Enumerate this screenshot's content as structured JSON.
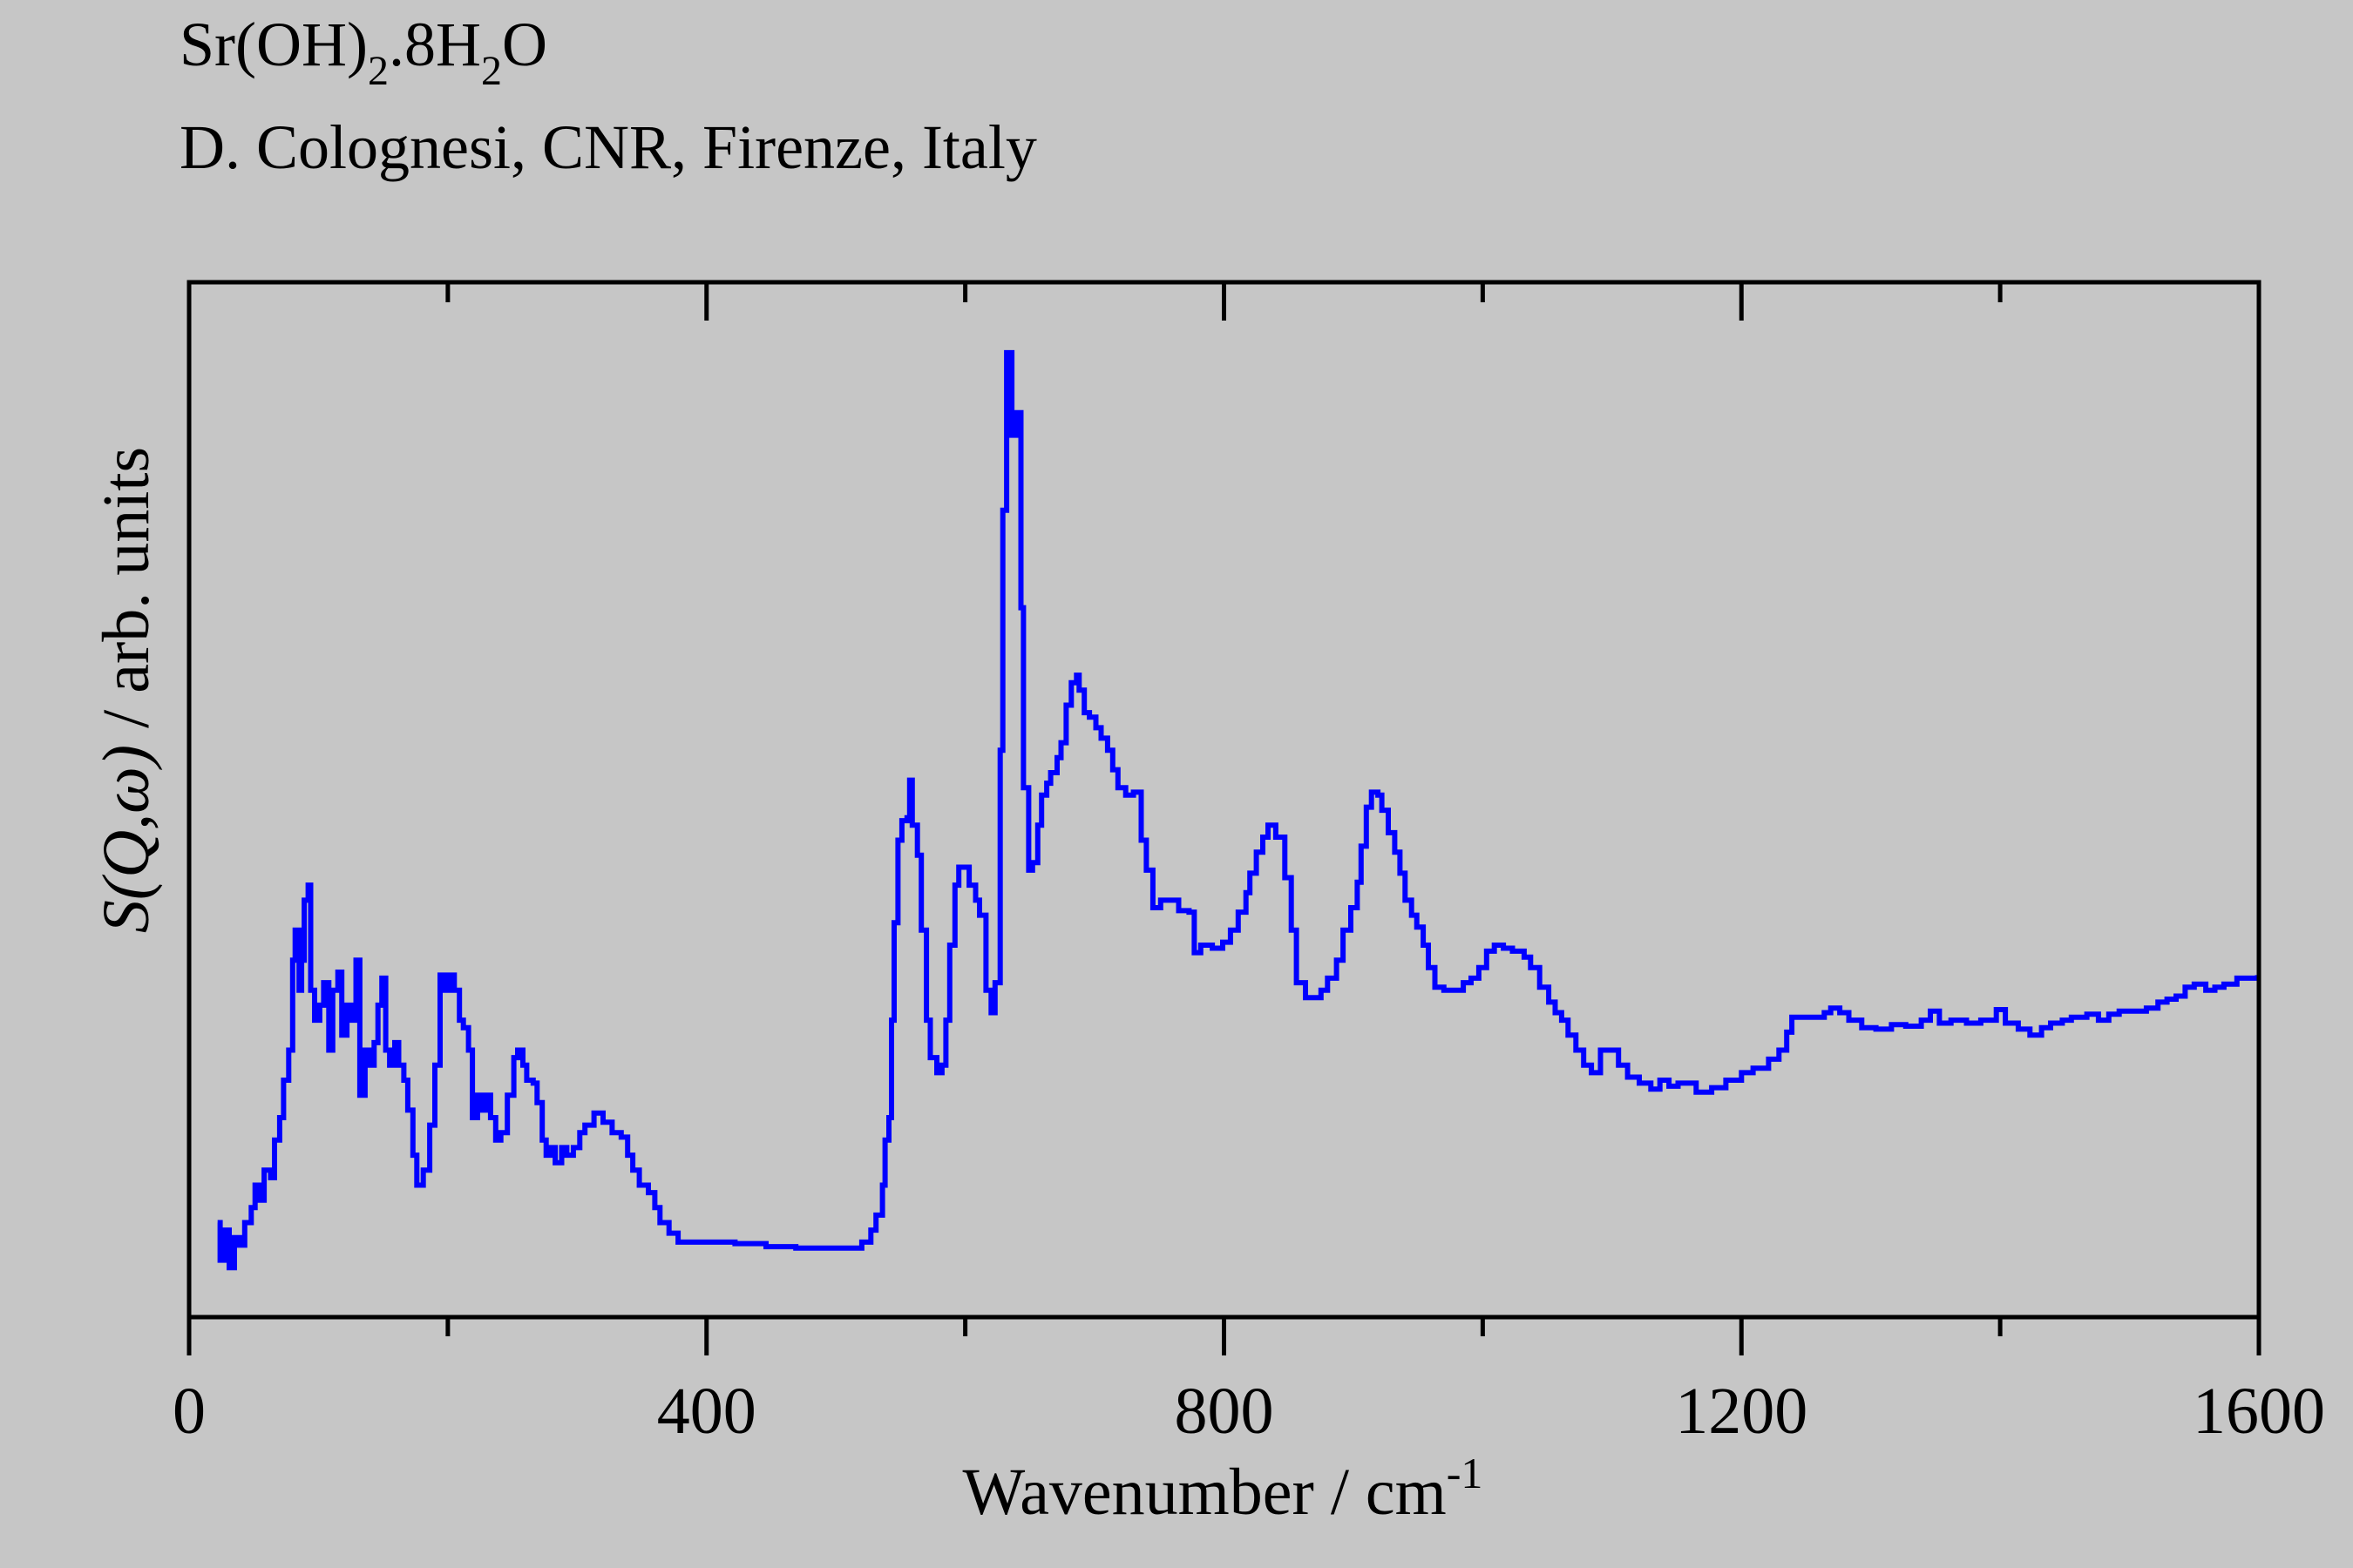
{
  "header": {
    "compound_main": "Sr(OH)",
    "compound_sub1": "2",
    "compound_mid": ".8H",
    "compound_sub2": "2",
    "compound_end": "O",
    "credit": "D. Colognesi, CNR, Firenze, Italy"
  },
  "chart_data": {
    "type": "line",
    "title": "Sr(OH)2.8H2O",
    "subtitle": "D. Colognesi, CNR, Firenze, Italy",
    "xlabel_main": "Wavenumber / cm",
    "xlabel_sup": "-1",
    "ylabel_italic": "S(Q,ω)",
    "ylabel_rest": " / arb. units",
    "xlim": [
      0,
      1600
    ],
    "ylim": [
      0,
      690
    ],
    "grid": false,
    "legend": "none",
    "x_major_ticks": [
      0,
      400,
      800,
      1200,
      1600
    ],
    "x_tick_labels": [
      "0",
      "400",
      "800",
      "1200",
      "1600"
    ],
    "x_minor_ticks": [
      200,
      600,
      1000,
      1400
    ],
    "series": [
      {
        "name": "S(Q,ω)",
        "color": "#0000ff",
        "style": "step",
        "x": [
          22,
          24,
          28,
          31,
          35,
          39,
          43,
          48,
          51,
          55,
          58,
          63,
          66,
          70,
          73,
          77,
          80,
          82,
          85,
          87,
          89,
          92,
          94,
          97,
          101,
          104,
          108,
          111,
          115,
          118,
          122,
          125,
          129,
          132,
          136,
          139,
          143,
          146,
          149,
          152,
          155,
          159,
          162,
          166,
          169,
          173,
          176,
          181,
          186,
          190,
          194,
          198,
          202,
          205,
          209,
          212,
          216,
          219,
          223,
          226,
          230,
          233,
          237,
          241,
          246,
          251,
          254,
          258,
          261,
          266,
          269,
          273,
          276,
          280,
          283,
          288,
          292,
          297,
          302,
          306,
          313,
          320,
          327,
          334,
          339,
          343,
          348,
          355,
          360,
          364,
          371,
          378,
          399,
          422,
          446,
          469,
          492,
          513,
          520,
          527,
          531,
          536,
          538,
          541,
          543,
          545,
          548,
          551,
          555,
          557,
          559,
          563,
          566,
          570,
          573,
          578,
          582,
          585,
          588,
          592,
          595,
          600,
          603,
          608,
          611,
          616,
          620,
          623,
          627,
          629,
          632,
          636,
          639,
          643,
          645,
          649,
          652,
          656,
          659,
          663,
          666,
          671,
          674,
          678,
          682,
          686,
          688,
          692,
          696,
          701,
          705,
          710,
          714,
          718,
          724,
          730,
          736,
          740,
          745,
          751,
          759,
          765,
          773,
          777,
          782,
          791,
          799,
          805,
          811,
          817,
          820,
          825,
          830,
          834,
          840,
          847,
          852,
          856,
          863,
          870,
          875,
          880,
          887,
          892,
          898,
          903,
          906,
          910,
          914,
          919,
          922,
          927,
          932,
          936,
          940,
          945,
          949,
          954,
          958,
          963,
          970,
          979,
          985,
          991,
          997,
          1003,
          1009,
          1016,
          1023,
          1032,
          1037,
          1044,
          1051,
          1056,
          1061,
          1066,
          1072,
          1078,
          1084,
          1091,
          1098,
          1105,
          1112,
          1121,
          1130,
          1137,
          1144,
          1151,
          1158,
          1165,
          1177,
          1188,
          1200,
          1209,
          1221,
          1229,
          1235,
          1239,
          1246,
          1255,
          1264,
          1269,
          1276,
          1283,
          1293,
          1304,
          1316,
          1327,
          1339,
          1346,
          1353,
          1362,
          1374,
          1385,
          1397,
          1404,
          1414,
          1423,
          1432,
          1439,
          1448,
          1455,
          1467,
          1476,
          1484,
          1492,
          1501,
          1513,
          1522,
          1529,
          1536,
          1543,
          1550,
          1559,
          1566,
          1573,
          1583,
          1592,
          1599
        ],
        "y": [
          63,
          38,
          58,
          33,
          53,
          48,
          63,
          73,
          88,
          78,
          98,
          93,
          118,
          133,
          158,
          178,
          238,
          258,
          218,
          238,
          278,
          288,
          218,
          198,
          208,
          223,
          178,
          218,
          230,
          188,
          208,
          198,
          238,
          148,
          178,
          168,
          183,
          208,
          226,
          178,
          168,
          183,
          168,
          158,
          138,
          108,
          88,
          98,
          128,
          168,
          228,
          218,
          228,
          218,
          198,
          193,
          178,
          133,
          148,
          138,
          148,
          133,
          118,
          123,
          148,
          173,
          178,
          168,
          158,
          156,
          143,
          118,
          108,
          113,
          103,
          113,
          108,
          113,
          123,
          128,
          136,
          130,
          123,
          120,
          108,
          98,
          88,
          83,
          73,
          63,
          56,
          50,
          50,
          49,
          47,
          46,
          46,
          46,
          50,
          58,
          68,
          88,
          118,
          133,
          198,
          263,
          318,
          331,
          333,
          358,
          328,
          308,
          258,
          198,
          173,
          163,
          168,
          198,
          248,
          288,
          300,
          300,
          288,
          278,
          268,
          218,
          203,
          223,
          378,
          538,
          643,
          588,
          603,
          473,
          353,
          298,
          303,
          328,
          348,
          356,
          363,
          373,
          383,
          408,
          423,
          428,
          418,
          403,
          400,
          393,
          386,
          378,
          365,
          353,
          348,
          350,
          318,
          298,
          273,
          278,
          278,
          271,
          270,
          243,
          248,
          246,
          250,
          258,
          270,
          283,
          296,
          310,
          320,
          328,
          320,
          293,
          258,
          223,
          213,
          213,
          218,
          226,
          238,
          258,
          273,
          290,
          314,
          340,
          350,
          348,
          338,
          323,
          310,
          296,
          278,
          268,
          260,
          248,
          233,
          220,
          218,
          218,
          223,
          226,
          233,
          244,
          248,
          246,
          244,
          240,
          233,
          220,
          210,
          203,
          198,
          188,
          178,
          168,
          163,
          178,
          178,
          168,
          160,
          156,
          152,
          158,
          154,
          156,
          156,
          150,
          153,
          158,
          163,
          166,
          172,
          178,
          190,
          200,
          200,
          200,
          203,
          206,
          203,
          198,
          193,
          192,
          195,
          194,
          198,
          204,
          196,
          198,
          196,
          198,
          205,
          196,
          192,
          188,
          193,
          196,
          198,
          200,
          202,
          198,
          202,
          204,
          204,
          206,
          210,
          212,
          214,
          220,
          222,
          218,
          220,
          222,
          226,
          226,
          228
        ]
      }
    ]
  }
}
